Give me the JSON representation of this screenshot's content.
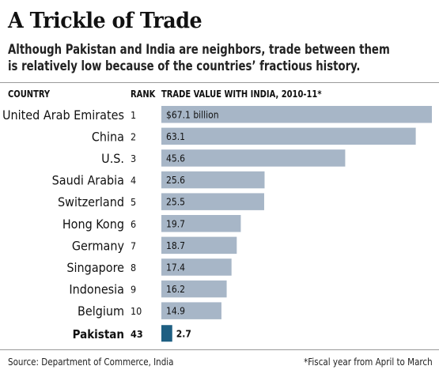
{
  "title": "A Trickle of Trade",
  "subtitle_line1": "Although Pakistan and India are neighbors, trade between them",
  "subtitle_line2": "is relatively low because of the countries’ fractious history.",
  "headers": {
    "country": "COUNTRY",
    "rank": "RANK",
    "value": "TRADE VALUE WITH INDIA, 2010-11*"
  },
  "footer": {
    "source": "Source: Department of Commerce, India",
    "note": "*Fiscal year from April to March"
  },
  "colors": {
    "bar": "#a7b6c7",
    "highlight": "#1e5f82"
  },
  "chart_data": {
    "type": "bar",
    "orientation": "horizontal",
    "title": "A Trickle of Trade",
    "xlabel": "TRADE VALUE WITH INDIA, 2010-11*",
    "categories": [
      "United Arab Emirates",
      "China",
      "U.S.",
      "Saudi Arabia",
      "Switzerland",
      "Hong Kong",
      "Germany",
      "Singapore",
      "Indonesia",
      "Belgium",
      "Pakistan"
    ],
    "ranks": [
      "1",
      "2",
      "3",
      "4",
      "5",
      "6",
      "7",
      "8",
      "9",
      "10",
      "43"
    ],
    "values": [
      67.1,
      63.1,
      45.6,
      25.6,
      25.5,
      19.7,
      18.7,
      17.4,
      16.2,
      14.9,
      2.7
    ],
    "value_labels": [
      "$67.1 billion",
      "63.1",
      "45.6",
      "25.6",
      "25.5",
      "19.7",
      "18.7",
      "17.4",
      "16.2",
      "14.9",
      "2.7"
    ],
    "highlight": "Pakistan",
    "grid": false,
    "legend": "none"
  }
}
